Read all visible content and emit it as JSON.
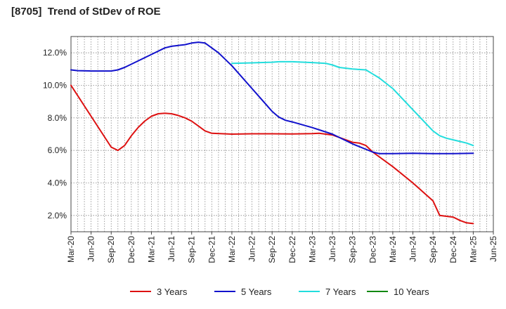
{
  "chart_data": {
    "type": "line",
    "title": "[8705]  Trend of StDev of ROE",
    "xlabel": "",
    "ylabel": "",
    "x_tick_labels": [
      "Mar-20",
      "Jun-20",
      "Sep-20",
      "Dec-20",
      "Mar-21",
      "Jun-21",
      "Sep-21",
      "Dec-21",
      "Mar-22",
      "Jun-22",
      "Sep-22",
      "Dec-22",
      "Mar-23",
      "Jun-23",
      "Sep-23",
      "Dec-23",
      "Mar-24",
      "Jun-24",
      "Sep-24",
      "Dec-24",
      "Mar-25",
      "Jun-25"
    ],
    "y_ticks": [
      2.0,
      4.0,
      6.0,
      8.0,
      10.0,
      12.0
    ],
    "y_tick_labels": [
      "2.0%",
      "4.0%",
      "6.0%",
      "8.0%",
      "10.0%",
      "12.0%"
    ],
    "ylim": [
      1.0,
      13.0
    ],
    "grid": true,
    "legend_position": "bottom",
    "series": [
      {
        "name": "3 Years",
        "color": "#dd1111",
        "points": [
          [
            "Mar-20",
            10.0
          ],
          [
            "Jun-20",
            8.1
          ],
          [
            "Sep-20",
            6.2
          ],
          [
            "Oct-20",
            6.0
          ],
          [
            "Nov-20",
            6.3
          ],
          [
            "Dec-20",
            6.9
          ],
          [
            "Jan-21",
            7.4
          ],
          [
            "Feb-21",
            7.8
          ],
          [
            "Mar-21",
            8.1
          ],
          [
            "Apr-21",
            8.25
          ],
          [
            "May-21",
            8.28
          ],
          [
            "Jun-21",
            8.25
          ],
          [
            "Jul-21",
            8.15
          ],
          [
            "Aug-21",
            8.0
          ],
          [
            "Sep-21",
            7.8
          ],
          [
            "Oct-21",
            7.5
          ],
          [
            "Nov-21",
            7.2
          ],
          [
            "Dec-21",
            7.05
          ],
          [
            "Mar-22",
            7.0
          ],
          [
            "Jun-22",
            7.02
          ],
          [
            "Sep-22",
            7.02
          ],
          [
            "Dec-22",
            7.01
          ],
          [
            "Mar-23",
            7.03
          ],
          [
            "Apr-23",
            7.05
          ],
          [
            "Jun-23",
            6.95
          ],
          [
            "Sep-23",
            6.5
          ],
          [
            "Oct-23",
            6.45
          ],
          [
            "Nov-23",
            6.3
          ],
          [
            "Dec-23",
            5.9
          ],
          [
            "Mar-24",
            5.0
          ],
          [
            "Jun-24",
            4.0
          ],
          [
            "Sep-24",
            2.9
          ],
          [
            "Oct-24",
            2.0
          ],
          [
            "Nov-24",
            1.95
          ],
          [
            "Dec-24",
            1.9
          ],
          [
            "Jan-25",
            1.7
          ],
          [
            "Feb-25",
            1.55
          ],
          [
            "Mar-25",
            1.5
          ]
        ]
      },
      {
        "name": "5 Years",
        "color": "#1111cc",
        "points": [
          [
            "Mar-20",
            10.95
          ],
          [
            "Apr-20",
            10.9
          ],
          [
            "Jun-20",
            10.88
          ],
          [
            "Sep-20",
            10.88
          ],
          [
            "Oct-20",
            10.95
          ],
          [
            "Nov-20",
            11.1
          ],
          [
            "Dec-20",
            11.3
          ],
          [
            "Mar-21",
            11.9
          ],
          [
            "May-21",
            12.3
          ],
          [
            "Jun-21",
            12.4
          ],
          [
            "Jul-21",
            12.45
          ],
          [
            "Aug-21",
            12.5
          ],
          [
            "Sep-21",
            12.6
          ],
          [
            "Oct-21",
            12.65
          ],
          [
            "Nov-21",
            12.6
          ],
          [
            "Dec-21",
            12.3
          ],
          [
            "Jan-22",
            12.0
          ],
          [
            "Mar-22",
            11.2
          ],
          [
            "Jun-22",
            9.8
          ],
          [
            "Sep-22",
            8.4
          ],
          [
            "Oct-22",
            8.05
          ],
          [
            "Nov-22",
            7.85
          ],
          [
            "Dec-22",
            7.75
          ],
          [
            "Mar-23",
            7.4
          ],
          [
            "Jun-23",
            7.0
          ],
          [
            "Sep-23",
            6.4
          ],
          [
            "Dec-23",
            5.9
          ],
          [
            "Jan-24",
            5.8
          ],
          [
            "Mar-24",
            5.8
          ],
          [
            "Jun-24",
            5.82
          ],
          [
            "Sep-24",
            5.8
          ],
          [
            "Dec-24",
            5.8
          ],
          [
            "Mar-25",
            5.82
          ]
        ]
      },
      {
        "name": "7 Years",
        "color": "#22dddd",
        "points": [
          [
            "Mar-22",
            11.35
          ],
          [
            "Jun-22",
            11.38
          ],
          [
            "Sep-22",
            11.42
          ],
          [
            "Oct-22",
            11.45
          ],
          [
            "Dec-22",
            11.45
          ],
          [
            "Mar-23",
            11.4
          ],
          [
            "May-23",
            11.35
          ],
          [
            "Jun-23",
            11.25
          ],
          [
            "Jul-23",
            11.1
          ],
          [
            "Sep-23",
            11.0
          ],
          [
            "Nov-23",
            10.95
          ],
          [
            "Dec-23",
            10.7
          ],
          [
            "Jan-24",
            10.45
          ],
          [
            "Mar-24",
            9.8
          ],
          [
            "Jun-24",
            8.5
          ],
          [
            "Sep-24",
            7.2
          ],
          [
            "Oct-24",
            6.9
          ],
          [
            "Nov-24",
            6.75
          ],
          [
            "Dec-24",
            6.65
          ],
          [
            "Jan-25",
            6.55
          ],
          [
            "Feb-25",
            6.45
          ],
          [
            "Mar-25",
            6.3
          ]
        ]
      },
      {
        "name": "10 Years",
        "color": "#118811",
        "points": []
      }
    ]
  }
}
